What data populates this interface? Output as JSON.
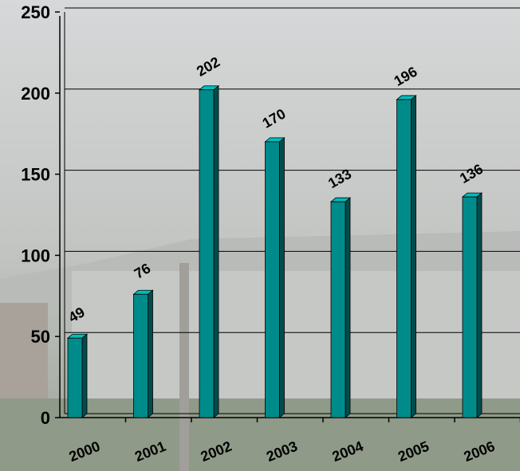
{
  "chart_data": {
    "type": "bar",
    "categories": [
      "2000",
      "2001",
      "2002",
      "2003",
      "2004",
      "2005",
      "2006"
    ],
    "values": [
      49,
      76,
      202,
      170,
      133,
      196,
      136
    ],
    "color": "#008b8b",
    "ylim": [
      0,
      250
    ],
    "yticks": [
      0,
      50,
      100,
      150,
      200,
      250
    ],
    "grid": true
  }
}
